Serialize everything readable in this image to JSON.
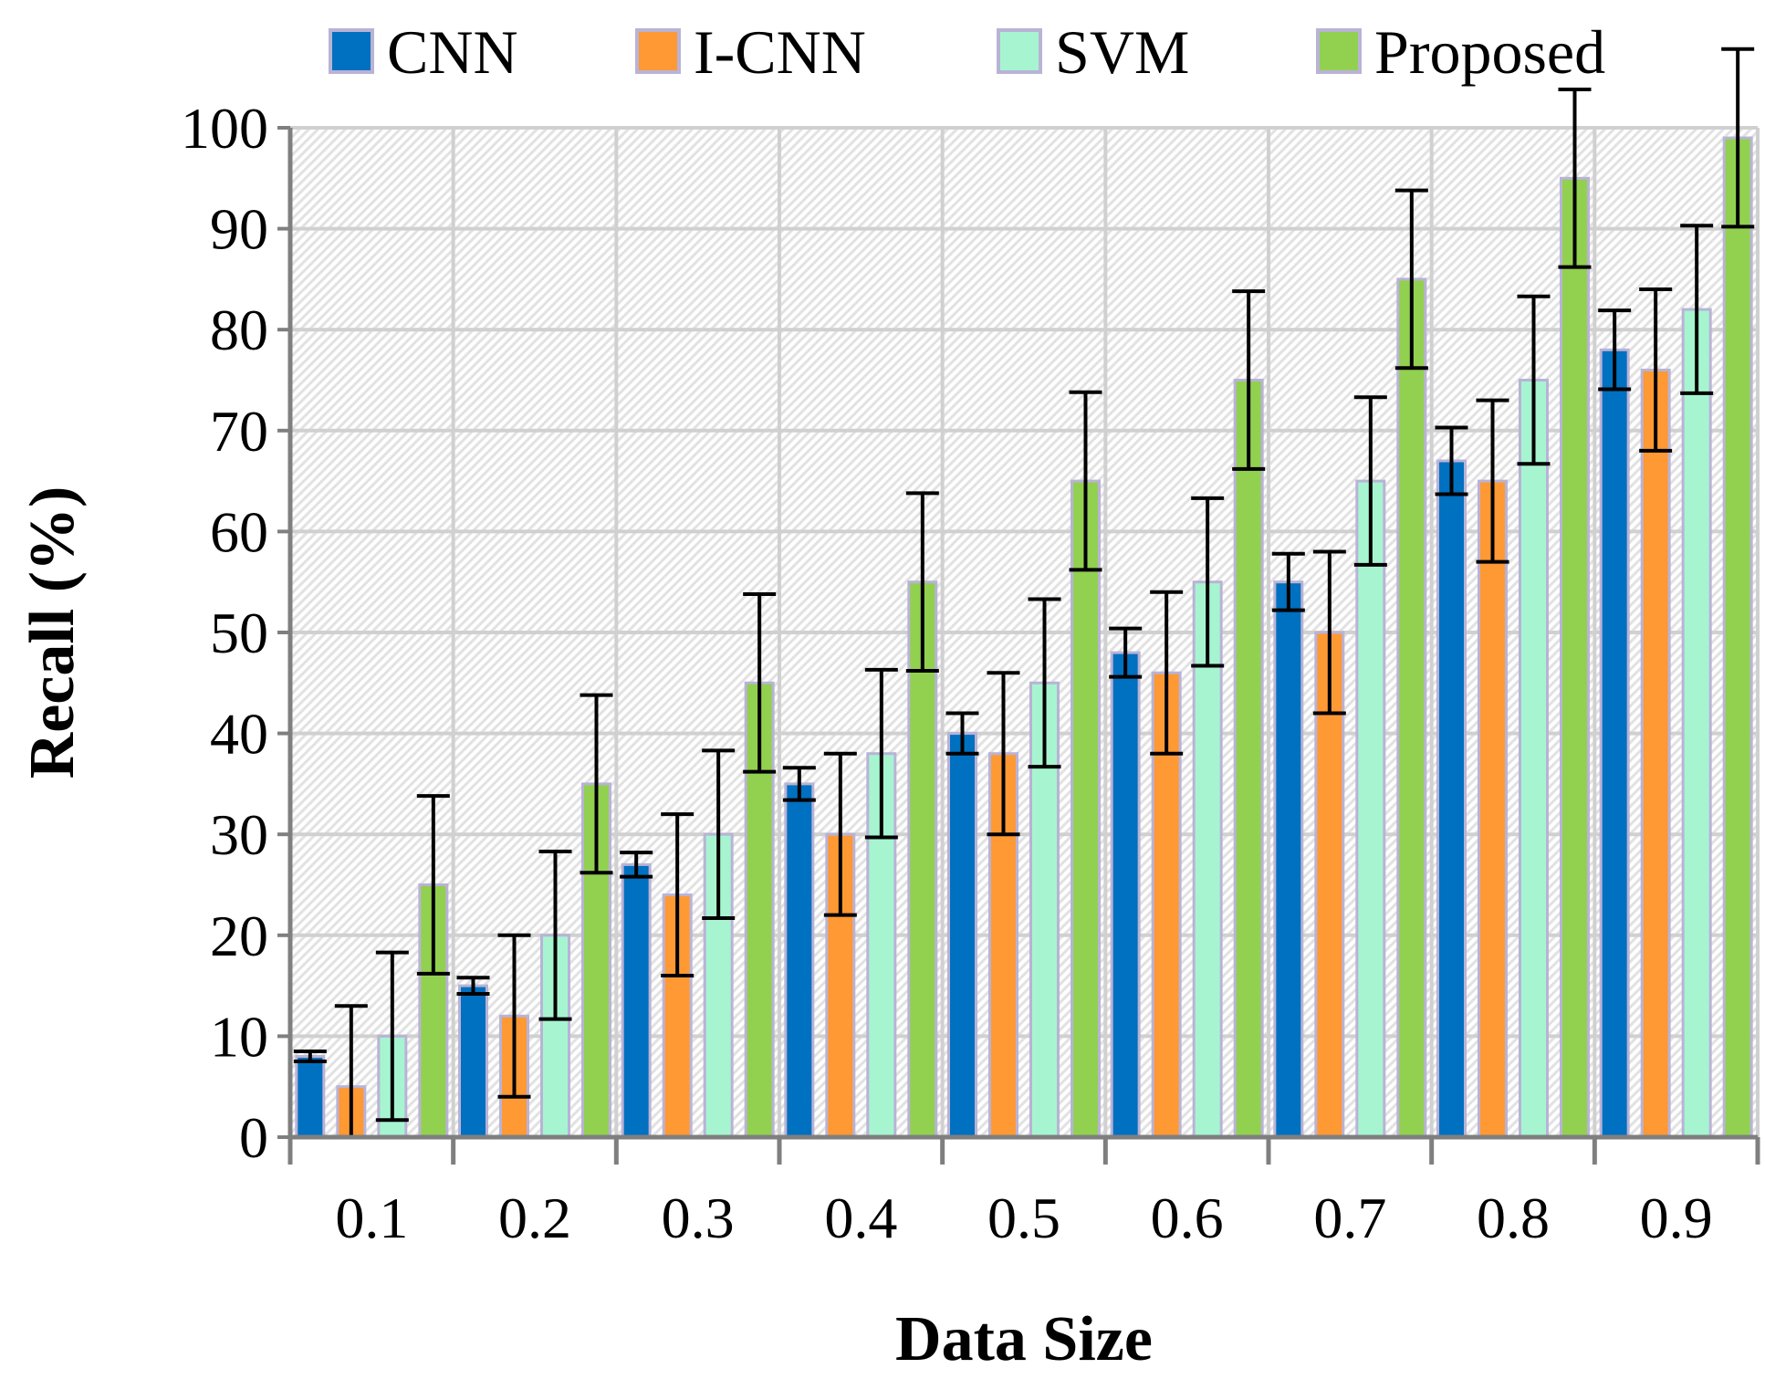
{
  "chart_data": {
    "type": "bar",
    "title": "",
    "xlabel": "Data Size",
    "ylabel": "Recall (%)",
    "ylim": [
      0,
      100
    ],
    "ytick_step": 10,
    "yticks": [
      "0",
      "10",
      "20",
      "30",
      "40",
      "50",
      "60",
      "70",
      "80",
      "90",
      "100"
    ],
    "grid": true,
    "legend_position": "top",
    "categories": [
      "0.1",
      "0.2",
      "0.3",
      "0.4",
      "0.5",
      "0.6",
      "0.7",
      "0.8",
      "0.9"
    ],
    "series": [
      {
        "name": "CNN",
        "color": "#0070C0",
        "values": [
          8,
          15,
          27,
          35,
          40,
          48,
          55,
          67,
          78
        ],
        "errors": [
          0.5,
          0.8,
          1.2,
          1.6,
          2,
          2.4,
          2.8,
          3.3,
          3.9
        ]
      },
      {
        "name": "I-CNN",
        "color": "#FF9933",
        "values": [
          5,
          12,
          24,
          30,
          38,
          46,
          50,
          65,
          76
        ],
        "errors": [
          8,
          8,
          8,
          8,
          8,
          8,
          8,
          8,
          8
        ]
      },
      {
        "name": "SVM",
        "color": "#A6F5D0",
        "values": [
          10,
          20,
          30,
          38,
          45,
          55,
          65,
          75,
          82
        ],
        "errors": [
          8.3,
          8.3,
          8.3,
          8.3,
          8.3,
          8.3,
          8.3,
          8.3,
          8.3
        ]
      },
      {
        "name": "Proposed",
        "color": "#92D050",
        "values": [
          25,
          35,
          45,
          55,
          65,
          75,
          85,
          95,
          99
        ],
        "errors": [
          8.8,
          8.8,
          8.8,
          8.8,
          8.8,
          8.8,
          8.8,
          8.8,
          8.8
        ]
      }
    ]
  }
}
